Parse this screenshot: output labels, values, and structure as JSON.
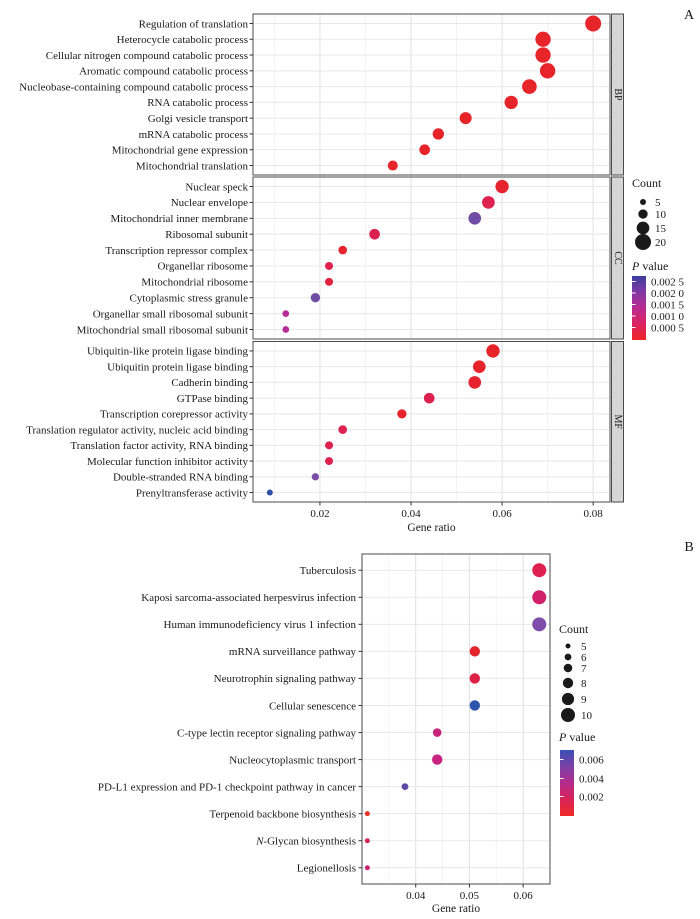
{
  "panels": {
    "a_label": "A",
    "b_label": "B"
  },
  "chart_data": [
    {
      "type": "scatter",
      "name": "GO enrichment dot plot",
      "xlabel": "Gene ratio",
      "ylabel": "",
      "xlim": [
        0.0053,
        0.0837
      ],
      "xticks": [
        "0.02",
        "0.04",
        "0.06",
        "0.08"
      ],
      "xtick_values": [
        0.02,
        0.04,
        0.06,
        0.08
      ],
      "grid": true,
      "legend_position": "right",
      "size_legend": {
        "title": "Count",
        "values": [
          5,
          10,
          15,
          20
        ]
      },
      "color_legend": {
        "title_italic": "P",
        "title_rest": " value",
        "tick_labels": [
          "0.002 5",
          "0.002 0",
          "0.001 5",
          "0.001 0",
          "0.000 5"
        ],
        "gradient_stops": [
          {
            "offset": 0,
            "color": "#3c3f9f"
          },
          {
            "offset": 25,
            "color": "#8138a4"
          },
          {
            "offset": 50,
            "color": "#b92c90"
          },
          {
            "offset": 75,
            "color": "#dc2360"
          },
          {
            "offset": 100,
            "color": "#ee2426"
          }
        ]
      },
      "facets": [
        {
          "label": "BP",
          "rows": [
            {
              "term": "Regulation of translation",
              "gene_ratio": 0.08,
              "count": 20,
              "p_value": 0.0001,
              "color": "#e8242b"
            },
            {
              "term": "Heterocycle catabolic process",
              "gene_ratio": 0.069,
              "count": 19,
              "p_value": 0.0001,
              "color": "#e8242b"
            },
            {
              "term": "Cellular nitrogen compound catabolic process",
              "gene_ratio": 0.069,
              "count": 19,
              "p_value": 0.0001,
              "color": "#e8242b"
            },
            {
              "term": "Aromatic compound catabolic process",
              "gene_ratio": 0.07,
              "count": 19,
              "p_value": 0.0001,
              "color": "#e8242b"
            },
            {
              "term": "Nucleobase-containing compound catabolic process",
              "gene_ratio": 0.066,
              "count": 18,
              "p_value": 0.0001,
              "color": "#e8242b"
            },
            {
              "term": "RNA catabolic process",
              "gene_ratio": 0.062,
              "count": 16,
              "p_value": 0.0001,
              "color": "#e8242b"
            },
            {
              "term": "Golgi vesicle transport",
              "gene_ratio": 0.052,
              "count": 14,
              "p_value": 0.0002,
              "color": "#e8242b"
            },
            {
              "term": "mRNA catabolic process",
              "gene_ratio": 0.046,
              "count": 13,
              "p_value": 0.0002,
              "color": "#e8242b"
            },
            {
              "term": "Mitochondrial gene expression",
              "gene_ratio": 0.043,
              "count": 12,
              "p_value": 0.0002,
              "color": "#e8242b"
            },
            {
              "term": "Mitochondrial translation",
              "gene_ratio": 0.036,
              "count": 11,
              "p_value": 0.0002,
              "color": "#e8242b"
            }
          ]
        },
        {
          "label": "CC",
          "rows": [
            {
              "term": "Nuclear speck",
              "gene_ratio": 0.06,
              "count": 16,
              "p_value": 0.0003,
              "color": "#e6232e"
            },
            {
              "term": "Nuclear envelope",
              "gene_ratio": 0.057,
              "count": 15,
              "p_value": 0.0006,
              "color": "#df2150"
            },
            {
              "term": "Mitochondrial inner membrane",
              "gene_ratio": 0.054,
              "count": 15,
              "p_value": 0.002,
              "color": "#6f4da5"
            },
            {
              "term": "Ribosomal subunit",
              "gene_ratio": 0.032,
              "count": 12,
              "p_value": 0.0007,
              "color": "#dc2150"
            },
            {
              "term": "Transcription repressor complex",
              "gene_ratio": 0.025,
              "count": 9,
              "p_value": 0.0003,
              "color": "#e6242e"
            },
            {
              "term": "Organellar ribosome",
              "gene_ratio": 0.022,
              "count": 8,
              "p_value": 0.0006,
              "color": "#df2150"
            },
            {
              "term": "Mitochondrial ribosome",
              "gene_ratio": 0.022,
              "count": 8,
              "p_value": 0.0005,
              "color": "#e32240"
            },
            {
              "term": "Cytoplasmic stress granule",
              "gene_ratio": 0.019,
              "count": 10,
              "p_value": 0.002,
              "color": "#6f4da5"
            },
            {
              "term": "Organellar small ribosomal subunit",
              "gene_ratio": 0.0125,
              "count": 6,
              "p_value": 0.0013,
              "color": "#b52d96"
            },
            {
              "term": "Mitochondrial small ribosomal subunit",
              "gene_ratio": 0.0125,
              "count": 6,
              "p_value": 0.0013,
              "color": "#b52d96"
            }
          ]
        },
        {
          "label": "MF",
          "rows": [
            {
              "term": "Ubiquitin-like protein ligase binding",
              "gene_ratio": 0.058,
              "count": 16,
              "p_value": 0.0002,
              "color": "#e8242b"
            },
            {
              "term": "Ubiquitin protein ligase binding",
              "gene_ratio": 0.055,
              "count": 15,
              "p_value": 0.0002,
              "color": "#e8242b"
            },
            {
              "term": "Cadherin binding",
              "gene_ratio": 0.054,
              "count": 15,
              "p_value": 0.0003,
              "color": "#e6232e"
            },
            {
              "term": "GTPase binding",
              "gene_ratio": 0.044,
              "count": 12,
              "p_value": 0.0007,
              "color": "#dc2150"
            },
            {
              "term": "Transcription corepressor activity",
              "gene_ratio": 0.038,
              "count": 10,
              "p_value": 0.0003,
              "color": "#e6242e"
            },
            {
              "term": "Translation regulator activity, nucleic acid binding",
              "gene_ratio": 0.025,
              "count": 9,
              "p_value": 0.0006,
              "color": "#df2150"
            },
            {
              "term": "Translation factor activity, RNA binding",
              "gene_ratio": 0.022,
              "count": 8,
              "p_value": 0.0007,
              "color": "#dc2150"
            },
            {
              "term": "Molecular function inhibitor activity",
              "gene_ratio": 0.022,
              "count": 8,
              "p_value": 0.0007,
              "color": "#dc2150"
            },
            {
              "term": "Double-stranded RNA binding",
              "gene_ratio": 0.019,
              "count": 7,
              "p_value": 0.0019,
              "color": "#7b4da6"
            },
            {
              "term": "Prenyltransferase activity",
              "gene_ratio": 0.009,
              "count": 5,
              "p_value": 0.0027,
              "color": "#2c4da4"
            }
          ]
        }
      ]
    },
    {
      "type": "scatter",
      "name": "KEGG pathway dot plot",
      "xlabel": "Gene ratio",
      "ylabel": "",
      "xlim": [
        0.03,
        0.065
      ],
      "xticks": [
        "0.04",
        "0.05",
        "0.06"
      ],
      "xtick_values": [
        0.04,
        0.05,
        0.06
      ],
      "grid": true,
      "legend_position": "right",
      "size_legend": {
        "title": "Count",
        "values": [
          5,
          6,
          7,
          8,
          9,
          10
        ]
      },
      "color_legend": {
        "title_italic": "P",
        "title_rest": " value",
        "tick_labels": [
          "0.006",
          "0.004",
          "0.002"
        ],
        "gradient_stops": [
          {
            "offset": 0,
            "color": "#3a50b5"
          },
          {
            "offset": 25,
            "color": "#7b41a7"
          },
          {
            "offset": 50,
            "color": "#b52b8c"
          },
          {
            "offset": 75,
            "color": "#d92357"
          },
          {
            "offset": 100,
            "color": "#ee2b26"
          }
        ]
      },
      "facets": [
        {
          "label": null,
          "rows": [
            {
              "term": "Tuberculosis",
              "gene_ratio": 0.063,
              "count": 10,
              "p_value": 0.0015,
              "color": "#de2051"
            },
            {
              "term": "Kaposi sarcoma-associated herpesvirus infection",
              "gene_ratio": 0.063,
              "count": 10,
              "p_value": 0.0025,
              "color": "#cf2069"
            },
            {
              "term": "Human immunodeficiency virus 1 infection",
              "gene_ratio": 0.063,
              "count": 10,
              "p_value": 0.005,
              "color": "#7e4dab"
            },
            {
              "term": "mRNA surveillance pathway",
              "gene_ratio": 0.051,
              "count": 8,
              "p_value": 0.001,
              "color": "#e6242e"
            },
            {
              "term": "Neurotrophin signaling pathway",
              "gene_ratio": 0.051,
              "count": 8,
              "p_value": 0.0015,
              "color": "#dd2146"
            },
            {
              "term": "Cellular senescence",
              "gene_ratio": 0.051,
              "count": 8,
              "p_value": 0.0065,
              "color": "#2e55ae"
            },
            {
              "term": "C-type lectin receptor signaling pathway",
              "gene_ratio": 0.044,
              "count": 7,
              "p_value": 0.003,
              "color": "#c92379"
            },
            {
              "term": "Nucleocytoplasmic transport",
              "gene_ratio": 0.044,
              "count": 8,
              "p_value": 0.003,
              "color": "#c92381"
            },
            {
              "term": "PD-L1 expression and PD-1 checkpoint pathway in cancer",
              "gene_ratio": 0.038,
              "count": 6,
              "p_value": 0.0055,
              "color": "#5e49a8"
            },
            {
              "term": "Terpenoid backbone biosynthesis",
              "gene_ratio": 0.031,
              "count": 5,
              "p_value": 0.001,
              "color": "#e73527"
            },
            {
              "term": "N-Glycan biosynthesis",
              "italic_chars": 1,
              "gene_ratio": 0.031,
              "count": 5,
              "p_value": 0.002,
              "color": "#d62458"
            },
            {
              "term": "Legionellosis",
              "gene_ratio": 0.031,
              "count": 5,
              "p_value": 0.0025,
              "color": "#cb2270"
            }
          ]
        }
      ]
    }
  ]
}
